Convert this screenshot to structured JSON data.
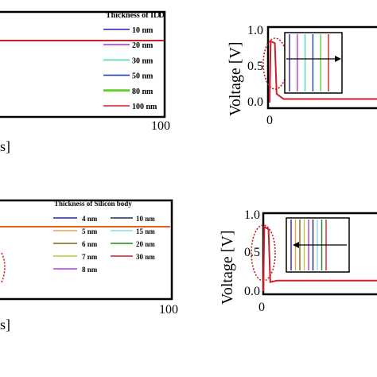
{
  "chart_data": [
    {
      "type": "line",
      "panel": "top-left",
      "legend_title": "Thickness of ILD",
      "x_tick_labels": [
        "100"
      ],
      "xlabel_fragment": "s]",
      "legend": [
        {
          "label": "10 nm",
          "color": "#2c1fb8"
        },
        {
          "label": "20 nm",
          "color": "#b13cd8"
        },
        {
          "label": "30 nm",
          "color": "#4fd3b4"
        },
        {
          "label": "50 nm",
          "color": "#1f3fa8"
        },
        {
          "label": "80 nm",
          "color": "#66cc33"
        },
        {
          "label": "100 nm",
          "color": "#cc1f2a"
        }
      ]
    },
    {
      "type": "line",
      "panel": "top-right",
      "ylabel": "Voltage [V]",
      "y_tick_labels": [
        "0.0",
        "0.5",
        "1.0"
      ],
      "x_tick_labels": [
        "0"
      ],
      "ylim": [
        0,
        1.0
      ],
      "inset_colors": [
        "#2c1fb8",
        "#b13cd8",
        "#4fd3b4",
        "#1f3fa8",
        "#66cc33",
        "#cc1f2a"
      ],
      "arrow_direction": "right",
      "series_pulse": [
        [
          0,
          0.0
        ],
        [
          0.6,
          0.85
        ],
        [
          3,
          0.82
        ],
        [
          4,
          0.12
        ],
        [
          8,
          0.05
        ],
        [
          100,
          0.05
        ]
      ]
    },
    {
      "type": "line",
      "panel": "bottom-left",
      "legend_title": "Thickness of Silicon body",
      "x_tick_labels": [
        "100"
      ],
      "xlabel_fragment": "s]",
      "legend": [
        {
          "label": "4 nm",
          "color": "#2c1fb8"
        },
        {
          "label": "10 nm",
          "color": "#1f2a5c"
        },
        {
          "label": "5 nm",
          "color": "#e8a14a"
        },
        {
          "label": "15 nm",
          "color": "#8fd8e8"
        },
        {
          "label": "6 nm",
          "color": "#7a6a14"
        },
        {
          "label": "20 nm",
          "color": "#1f8a1f"
        },
        {
          "label": "7 nm",
          "color": "#b8c83a"
        },
        {
          "label": "30 nm",
          "color": "#cc1f2a"
        },
        {
          "label": "8 nm",
          "color": "#b13cd8"
        }
      ]
    },
    {
      "type": "line",
      "panel": "bottom-right",
      "ylabel": "Voltage [V]",
      "y_tick_labels": [
        "0.0",
        "0.5",
        "1.0"
      ],
      "x_tick_labels": [
        "0"
      ],
      "ylim": [
        0,
        1.0
      ],
      "inset_colors": [
        "#2c1fb8",
        "#e8a14a",
        "#7a6a14",
        "#b8c83a",
        "#b13cd8",
        "#1f2a5c",
        "#8fd8e8",
        "#1f8a1f",
        "#cc1f2a"
      ],
      "arrow_direction": "left",
      "series_pulse": [
        [
          0,
          0.0
        ],
        [
          0.6,
          0.85
        ],
        [
          3,
          0.82
        ],
        [
          4,
          0.12
        ],
        [
          8,
          0.14
        ],
        [
          100,
          0.14
        ]
      ]
    }
  ]
}
